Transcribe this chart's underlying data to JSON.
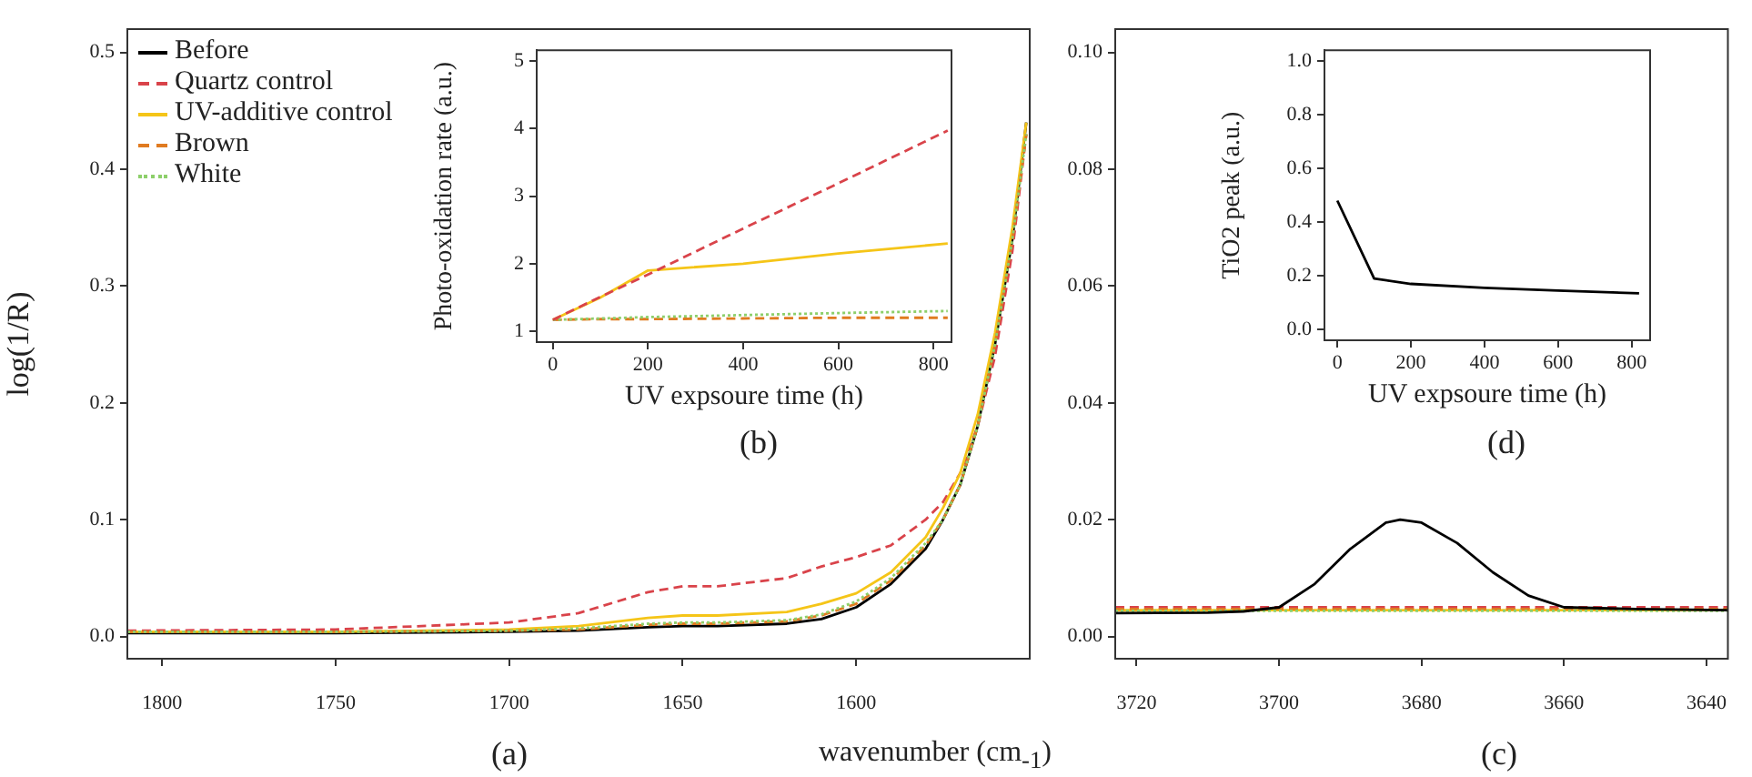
{
  "chart_data": [
    {
      "type": "line",
      "xlabel": "wavenumber (cm$_{-1}$)",
      "ylabel": "log(1/R)",
      "annotations": [
        "(a)"
      ],
      "legend": "top left",
      "x": [
        1810,
        1750,
        1700,
        1680,
        1660,
        1650,
        1640,
        1620,
        1610,
        1600,
        1590,
        1580,
        1575,
        1570,
        1565,
        1560,
        1555,
        1551
      ],
      "series": [
        {
          "name": "Before",
          "color": "#000000",
          "line_style": "solid",
          "values": [
            0.003,
            0.003,
            0.004,
            0.005,
            0.008,
            0.009,
            0.009,
            0.011,
            0.015,
            0.025,
            0.045,
            0.075,
            0.1,
            0.13,
            0.18,
            0.25,
            0.34,
            0.44
          ]
        },
        {
          "name": "Quartz control",
          "color": "#d9434a",
          "line_style": "dashed",
          "values": [
            0.005,
            0.006,
            0.012,
            0.02,
            0.038,
            0.043,
            0.043,
            0.05,
            0.06,
            0.068,
            0.078,
            0.1,
            0.115,
            0.14,
            0.18,
            0.24,
            0.33,
            0.43
          ]
        },
        {
          "name": "UV-additive control",
          "color": "#f5c518",
          "line_style": "solid",
          "values": [
            0.004,
            0.004,
            0.006,
            0.009,
            0.016,
            0.018,
            0.018,
            0.021,
            0.028,
            0.037,
            0.055,
            0.085,
            0.11,
            0.14,
            0.19,
            0.26,
            0.35,
            0.44
          ]
        },
        {
          "name": "Brown",
          "color": "#e07b20",
          "line_style": "dashed",
          "values": [
            0.004,
            0.004,
            0.005,
            0.006,
            0.01,
            0.011,
            0.011,
            0.013,
            0.018,
            0.028,
            0.048,
            0.078,
            0.1,
            0.13,
            0.18,
            0.25,
            0.34,
            0.43
          ]
        },
        {
          "name": "White",
          "color": "#8dcf6b",
          "line_style": "dotted",
          "values": [
            0.004,
            0.004,
            0.005,
            0.007,
            0.011,
            0.012,
            0.012,
            0.014,
            0.019,
            0.03,
            0.05,
            0.08,
            0.1,
            0.13,
            0.18,
            0.25,
            0.34,
            0.43
          ]
        }
      ],
      "xlim": [
        1810,
        1550
      ],
      "xticks": [
        1800,
        1750,
        1700,
        1650,
        1600
      ],
      "ylim": [
        -0.019,
        0.52
      ],
      "yticks": [
        {
          "value": 0,
          "label": "0.0"
        },
        {
          "value": 0.1,
          "label": "0.1"
        },
        {
          "value": 0.2,
          "label": "0.2"
        },
        {
          "value": 0.3,
          "label": "0.3"
        },
        {
          "value": 0.4,
          "label": "0.4"
        },
        {
          "value": 0.5,
          "label": "0.5"
        }
      ]
    },
    {
      "type": "line",
      "xlabel": "UV expsoure time (h)",
      "ylabel": "Photo-oxidation rate (a.u.)",
      "annotations": [
        "(b)"
      ],
      "x": [
        0,
        100,
        200,
        400,
        600,
        830
      ],
      "series": [
        {
          "color": "#f5c518",
          "line_style": "solid",
          "values": [
            1.17,
            1.5,
            1.9,
            2.0,
            2.15,
            2.3
          ]
        },
        {
          "color": "#e07b20",
          "line_style": "dashed",
          "values": [
            1.17,
            1.18,
            1.18,
            1.19,
            1.2,
            1.2
          ]
        },
        {
          "color": "#8dcf6b",
          "line_style": "dotted",
          "values": [
            1.17,
            1.19,
            1.21,
            1.24,
            1.27,
            1.3
          ]
        },
        {
          "color": "#d9434a",
          "line_style": "dashed",
          "values": [
            1.17,
            1.51,
            1.84,
            2.52,
            3.19,
            3.97
          ]
        }
      ],
      "xlim": [
        -34,
        838
      ],
      "xticks": [
        0,
        200,
        400,
        600,
        800
      ],
      "ylim": [
        0.84,
        5.16
      ],
      "yticks": [
        1,
        2,
        3,
        4,
        5
      ]
    },
    {
      "type": "line",
      "annotations": [
        "(c)"
      ],
      "x": [
        3723,
        3710,
        3705,
        3700,
        3695,
        3690,
        3685,
        3683,
        3680,
        3675,
        3670,
        3665,
        3660,
        3650,
        3637
      ],
      "series": [
        {
          "color": "#d9434a",
          "line_style": "dashed",
          "values": [
            0.005,
            0.005,
            0.005,
            0.005,
            0.005,
            0.005,
            0.005,
            0.005,
            0.005,
            0.005,
            0.005,
            0.005,
            0.005,
            0.005,
            0.005
          ]
        },
        {
          "color": "#f5c518",
          "line_style": "solid",
          "values": [
            0.0045,
            0.0045,
            0.0045,
            0.0045,
            0.0045,
            0.0045,
            0.0045,
            0.0045,
            0.0045,
            0.0045,
            0.0045,
            0.0045,
            0.0045,
            0.0045,
            0.0045
          ]
        },
        {
          "color": "#e07b20",
          "line_style": "dashed",
          "values": [
            0.0047,
            0.0047,
            0.0047,
            0.0047,
            0.0047,
            0.0047,
            0.0047,
            0.0047,
            0.0047,
            0.0047,
            0.0047,
            0.0047,
            0.0047,
            0.0047,
            0.0047
          ]
        },
        {
          "color": "#8dcf6b",
          "line_style": "dotted",
          "values": [
            0.0044,
            0.0044,
            0.0044,
            0.0044,
            0.0044,
            0.0044,
            0.0044,
            0.0044,
            0.0044,
            0.0044,
            0.0044,
            0.0044,
            0.0044,
            0.0044,
            0.0044
          ]
        },
        {
          "color": "#000000",
          "line_style": "solid",
          "values": [
            0.004,
            0.0041,
            0.0043,
            0.005,
            0.009,
            0.015,
            0.0195,
            0.02,
            0.0195,
            0.016,
            0.011,
            0.007,
            0.005,
            0.0047,
            0.0045
          ]
        }
      ],
      "xlim": [
        3723,
        3637
      ],
      "xticks": [
        3720,
        3700,
        3680,
        3660,
        3640
      ],
      "ylim": [
        -0.0038,
        0.104
      ],
      "yticks": [
        {
          "value": 0,
          "label": "0.00"
        },
        {
          "value": 0.02,
          "label": "0.02"
        },
        {
          "value": 0.04,
          "label": "0.04"
        },
        {
          "value": 0.06,
          "label": "0.06"
        },
        {
          "value": 0.08,
          "label": "0.08"
        },
        {
          "value": 0.1,
          "label": "0.10"
        }
      ]
    },
    {
      "type": "line",
      "xlabel": "UV expsoure time (h)",
      "ylabel": "TiO2 peak (a.u.)",
      "annotations": [
        "(d)"
      ],
      "x": [
        0,
        100,
        200,
        400,
        600,
        820
      ],
      "series": [
        {
          "color": "#000000",
          "line_style": "solid",
          "values": [
            0.48,
            0.19,
            0.17,
            0.155,
            0.145,
            0.135
          ]
        }
      ],
      "xlim": [
        -35,
        850
      ],
      "xticks": [
        0,
        200,
        400,
        600,
        800
      ],
      "ylim": [
        -0.04,
        1.04
      ],
      "yticks": [
        {
          "value": 0,
          "label": "0.0"
        },
        {
          "value": 0.2,
          "label": "0.2"
        },
        {
          "value": 0.4,
          "label": "0.4"
        },
        {
          "value": 0.6,
          "label": "0.6"
        },
        {
          "value": 0.8,
          "label": "0.8"
        },
        {
          "value": 1,
          "label": "1.0"
        }
      ]
    }
  ]
}
